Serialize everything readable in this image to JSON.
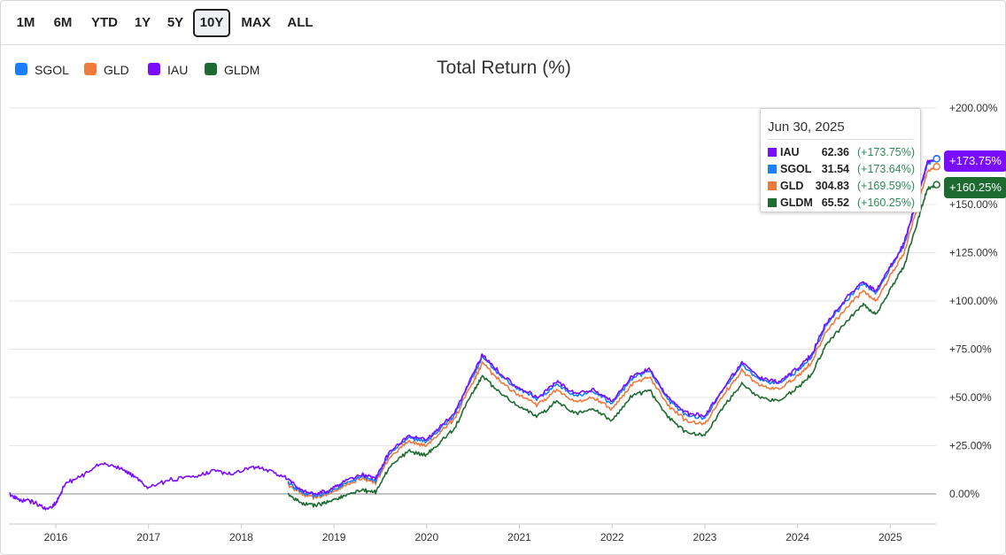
{
  "range_buttons": [
    {
      "label": "1M",
      "active": false
    },
    {
      "label": "6M",
      "active": false
    },
    {
      "label": "YTD",
      "active": false
    },
    {
      "label": "1Y",
      "active": false
    },
    {
      "label": "5Y",
      "active": false
    },
    {
      "label": "10Y",
      "active": true
    },
    {
      "label": "MAX",
      "active": false
    },
    {
      "label": "ALL",
      "active": false
    }
  ],
  "legend": [
    {
      "label": "SGOL",
      "color": "#1a7fff"
    },
    {
      "label": "GLD",
      "color": "#f07a3c"
    },
    {
      "label": "IAU",
      "color": "#7a0dff"
    },
    {
      "label": "GLDM",
      "color": "#1e6b32"
    }
  ],
  "tooltip": {
    "date": "Jun 30, 2025",
    "rows": [
      {
        "symbol": "IAU",
        "value": "62.36",
        "change": "(+173.75%)",
        "color": "#7a0dff"
      },
      {
        "symbol": "SGOL",
        "value": "31.54",
        "change": "(+173.64%)",
        "color": "#1a7fff"
      },
      {
        "symbol": "GLD",
        "value": "304.83",
        "change": "(+169.59%)",
        "color": "#f07a3c"
      },
      {
        "symbol": "GLDM",
        "value": "65.52",
        "change": "(+160.25%)",
        "color": "#1e6b32"
      }
    ]
  },
  "end_labels": [
    {
      "text": "+173.75%",
      "color": "#7a0dff"
    },
    {
      "text": "+160.25%",
      "color": "#1e6b32"
    }
  ],
  "chart_data": {
    "type": "line",
    "title": "Total Return (%)",
    "y_axis_side": "right",
    "ylim": [
      -15,
      210
    ],
    "y_ticks": [
      0,
      25,
      50,
      75,
      100,
      125,
      150,
      200
    ],
    "y_tick_labels": [
      "0.00%",
      "+25.00%",
      "+50.00%",
      "+75.00%",
      "+100.00%",
      "+125.00%",
      "+150.00%",
      "+200.00%"
    ],
    "xlim": [
      2015.5,
      2025.5
    ],
    "x_ticks": [
      2016,
      2017,
      2018,
      2019,
      2020,
      2021,
      2022,
      2023,
      2024,
      2025
    ],
    "x_tick_labels": [
      "2016",
      "2017",
      "2018",
      "2019",
      "2020",
      "2021",
      "2022",
      "2023",
      "2024",
      "2025"
    ],
    "grid": true,
    "legend_position": "top-left",
    "series": [
      {
        "name": "IAU",
        "color": "#7a0dff",
        "x": [
          2015.5,
          2015.6,
          2015.75,
          2015.9,
          2016.0,
          2016.1,
          2016.3,
          2016.5,
          2016.7,
          2016.85,
          2017.0,
          2017.2,
          2017.5,
          2017.7,
          2017.9,
          2018.1,
          2018.3,
          2018.5,
          2018.65,
          2018.8,
          2018.95,
          2019.1,
          2019.3,
          2019.45,
          2019.6,
          2019.8,
          2020.0,
          2020.15,
          2020.3,
          2020.5,
          2020.6,
          2020.8,
          2021.0,
          2021.2,
          2021.4,
          2021.6,
          2021.8,
          2022.0,
          2022.2,
          2022.4,
          2022.6,
          2022.8,
          2023.0,
          2023.2,
          2023.4,
          2023.6,
          2023.8,
          2024.0,
          2024.15,
          2024.3,
          2024.5,
          2024.7,
          2024.85,
          2025.0,
          2025.15,
          2025.3,
          2025.4,
          2025.5
        ],
        "y": [
          0,
          -3,
          -4,
          -8,
          -5,
          5,
          10,
          16,
          13,
          9,
          3,
          7,
          9,
          12,
          10,
          14,
          12,
          8,
          2,
          0,
          2,
          6,
          10,
          8,
          22,
          30,
          28,
          35,
          42,
          62,
          72,
          62,
          55,
          50,
          58,
          52,
          54,
          48,
          60,
          65,
          50,
          42,
          40,
          55,
          68,
          60,
          58,
          65,
          72,
          88,
          100,
          110,
          105,
          118,
          130,
          155,
          172,
          173.75
        ]
      },
      {
        "name": "SGOL",
        "color": "#1a7fff",
        "x": [
          2018.5,
          2018.65,
          2018.8,
          2018.95,
          2019.1,
          2019.3,
          2019.45,
          2019.6,
          2019.8,
          2020.0,
          2020.15,
          2020.3,
          2020.5,
          2020.6,
          2020.8,
          2021.0,
          2021.2,
          2021.4,
          2021.6,
          2021.8,
          2022.0,
          2022.2,
          2022.4,
          2022.6,
          2022.8,
          2023.0,
          2023.2,
          2023.4,
          2023.6,
          2023.8,
          2024.0,
          2024.15,
          2024.3,
          2024.5,
          2024.7,
          2024.85,
          2025.0,
          2025.15,
          2025.3,
          2025.4,
          2025.5
        ],
        "y": [
          6,
          1,
          -1,
          1,
          5,
          9,
          7,
          21,
          29,
          27,
          34,
          41,
          61,
          71,
          61,
          54,
          49,
          57,
          51,
          53,
          47,
          59,
          64,
          49,
          41,
          39,
          54,
          67,
          59,
          57,
          64,
          71,
          87,
          99,
          109,
          104,
          117,
          129,
          154,
          171,
          173.64
        ]
      },
      {
        "name": "GLD",
        "color": "#f07a3c",
        "x": [
          2018.5,
          2018.65,
          2018.8,
          2018.95,
          2019.1,
          2019.3,
          2019.45,
          2019.6,
          2019.8,
          2020.0,
          2020.15,
          2020.3,
          2020.5,
          2020.6,
          2020.8,
          2021.0,
          2021.2,
          2021.4,
          2021.6,
          2021.8,
          2022.0,
          2022.2,
          2022.4,
          2022.6,
          2022.8,
          2023.0,
          2023.2,
          2023.4,
          2023.6,
          2023.8,
          2024.0,
          2024.15,
          2024.3,
          2024.5,
          2024.7,
          2024.85,
          2025.0,
          2025.15,
          2025.3,
          2025.4,
          2025.5
        ],
        "y": [
          5,
          0,
          -2,
          0,
          4,
          8,
          6,
          19,
          27,
          25,
          32,
          39,
          58,
          68,
          58,
          51,
          46,
          54,
          48,
          50,
          44,
          56,
          61,
          46,
          38,
          36,
          51,
          64,
          56,
          54,
          61,
          68,
          84,
          95,
          105,
          100,
          113,
          125,
          150,
          167,
          169.59
        ]
      },
      {
        "name": "GLDM",
        "color": "#1e6b32",
        "x": [
          2018.5,
          2018.65,
          2018.8,
          2018.95,
          2019.1,
          2019.3,
          2019.45,
          2019.6,
          2019.8,
          2020.0,
          2020.15,
          2020.3,
          2020.5,
          2020.6,
          2020.8,
          2021.0,
          2021.2,
          2021.4,
          2021.6,
          2021.8,
          2022.0,
          2022.2,
          2022.4,
          2022.6,
          2022.8,
          2023.0,
          2023.2,
          2023.4,
          2023.6,
          2023.8,
          2024.0,
          2024.15,
          2024.3,
          2024.5,
          2024.7,
          2024.85,
          2025.0,
          2025.15,
          2025.3,
          2025.4,
          2025.5
        ],
        "y": [
          0,
          -5,
          -6,
          -4,
          -1,
          2,
          1,
          14,
          22,
          20,
          27,
          34,
          53,
          61,
          52,
          45,
          40,
          48,
          42,
          44,
          38,
          50,
          54,
          40,
          32,
          30,
          45,
          57,
          50,
          48,
          55,
          62,
          77,
          88,
          98,
          93,
          106,
          118,
          142,
          158,
          160.25
        ]
      }
    ]
  }
}
